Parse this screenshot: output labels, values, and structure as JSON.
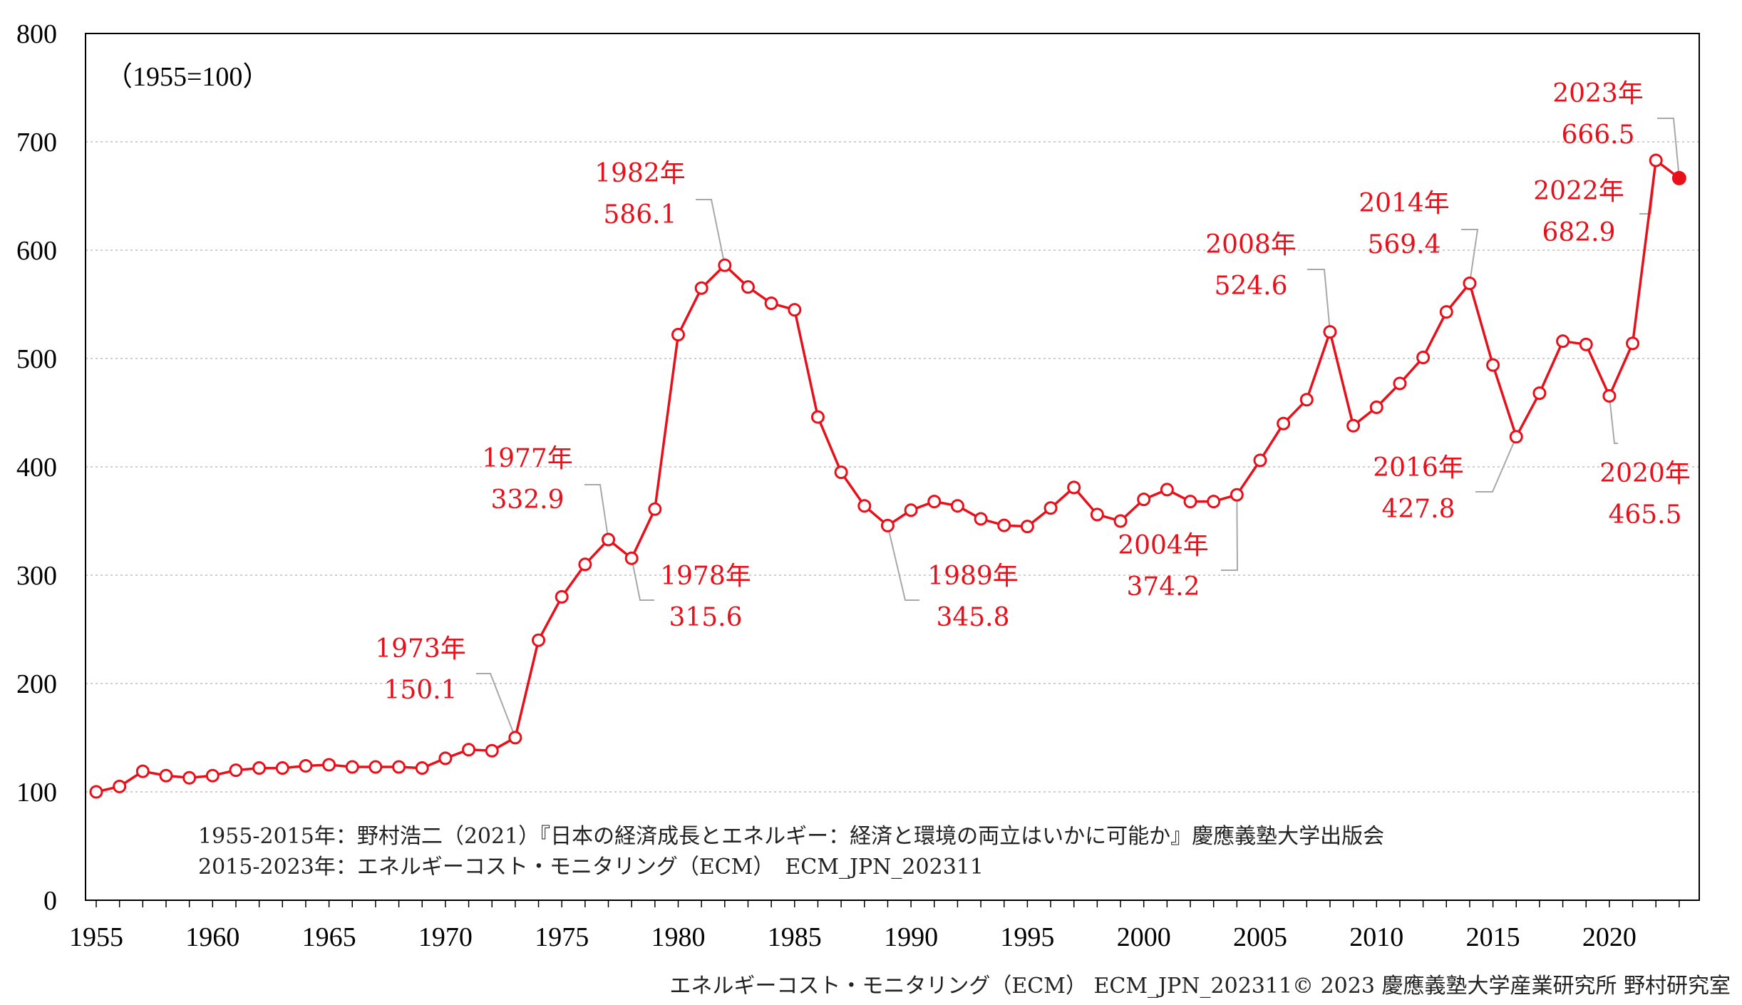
{
  "chart_data": {
    "type": "line",
    "base_note": "（1955=100）",
    "x": [
      1955,
      1956,
      1957,
      1958,
      1959,
      1960,
      1961,
      1962,
      1963,
      1964,
      1965,
      1966,
      1967,
      1968,
      1969,
      1970,
      1971,
      1972,
      1973,
      1974,
      1975,
      1976,
      1977,
      1978,
      1979,
      1980,
      1981,
      1982,
      1983,
      1984,
      1985,
      1986,
      1987,
      1988,
      1989,
      1990,
      1991,
      1992,
      1993,
      1994,
      1995,
      1996,
      1997,
      1998,
      1999,
      2000,
      2001,
      2002,
      2003,
      2004,
      2005,
      2006,
      2007,
      2008,
      2009,
      2010,
      2011,
      2012,
      2013,
      2014,
      2015,
      2016,
      2017,
      2018,
      2019,
      2020,
      2021,
      2022,
      2023
    ],
    "values": [
      100,
      105,
      119,
      115,
      113,
      115,
      120,
      122,
      122,
      124,
      125,
      123,
      123,
      123,
      122,
      131,
      139,
      138,
      150.1,
      240,
      280,
      310,
      332.9,
      315.6,
      361,
      522,
      565,
      586.1,
      566,
      551,
      545,
      446,
      395,
      364,
      345.8,
      360,
      368,
      364,
      352,
      346,
      345,
      362,
      381,
      356,
      350,
      370,
      379,
      368,
      368,
      374.2,
      406,
      440,
      462,
      524.6,
      438,
      455,
      477,
      501,
      543,
      569.4,
      494,
      427.8,
      468,
      516,
      513,
      465.5,
      514,
      682.9,
      666.5
    ],
    "ylim": [
      0,
      800
    ],
    "yticks": [
      0,
      100,
      200,
      300,
      400,
      500,
      600,
      700,
      800
    ],
    "xticks": [
      1955,
      1960,
      1965,
      1970,
      1975,
      1980,
      1985,
      1990,
      1995,
      2000,
      2005,
      2010,
      2015,
      2020
    ],
    "grid": "horizontal dotted",
    "line_color": "#e8101a",
    "annotations": [
      {
        "year": 1973,
        "year_label": "1973年",
        "value_label": "150.1"
      },
      {
        "year": 1977,
        "year_label": "1977年",
        "value_label": "332.9"
      },
      {
        "year": 1978,
        "year_label": "1978年",
        "value_label": "315.6"
      },
      {
        "year": 1982,
        "year_label": "1982年",
        "value_label": "586.1"
      },
      {
        "year": 1989,
        "year_label": "1989年",
        "value_label": "345.8"
      },
      {
        "year": 2004,
        "year_label": "2004年",
        "value_label": "374.2"
      },
      {
        "year": 2008,
        "year_label": "2008年",
        "value_label": "524.6"
      },
      {
        "year": 2014,
        "year_label": "2014年",
        "value_label": "569.4"
      },
      {
        "year": 2016,
        "year_label": "2016年",
        "value_label": "427.8"
      },
      {
        "year": 2020,
        "year_label": "2020年",
        "value_label": "465.5"
      },
      {
        "year": 2022,
        "year_label": "2022年",
        "value_label": "682.9"
      },
      {
        "year": 2023,
        "year_label": "2023年",
        "value_label": "666.5"
      }
    ],
    "sources": [
      "1955-2015年：野村浩二（2021）『日本の経済成長とエネルギー：経済と環境の両立はいかに可能か』慶應義塾大学出版会",
      "2015-2023年：エネルギーコスト・モニタリング（ECM）　ECM_JPN_202311"
    ],
    "credit": "エネルギーコスト・モニタリング（ECM） ECM_JPN_202311© 2023 慶應義塾大学産業研究所 野村研究室"
  }
}
